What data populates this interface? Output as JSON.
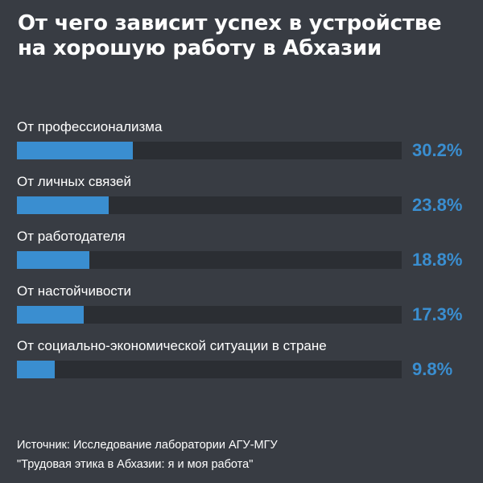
{
  "title_lines": [
    "От чего зависит успех в устройстве",
    "на хорошую работу в Абхазии"
  ],
  "colors": {
    "background": "#383c43",
    "bar": "#3a8ed0",
    "track": "#2b2e33",
    "value_text": "#3a8ed0",
    "text": "#ffffff"
  },
  "source_lines": [
    "Источник: Исследование лаборатории АГУ-МГУ",
    "\"Трудовая этика в Абхазии: я и моя работа\""
  ],
  "chart_data": {
    "type": "bar",
    "orientation": "horizontal",
    "categories": [
      "От профессионализма",
      "От личных связей",
      "От работодателя",
      "От настойчивости",
      "От социально-экономической ситуации в стране"
    ],
    "values": [
      30.2,
      23.8,
      18.8,
      17.3,
      9.8
    ],
    "value_labels": [
      "30.2%",
      "23.8%",
      "18.8%",
      "17.3%",
      "9.8%"
    ],
    "unit": "%",
    "xlim": [
      0,
      100
    ],
    "grid": false,
    "legend": false
  }
}
